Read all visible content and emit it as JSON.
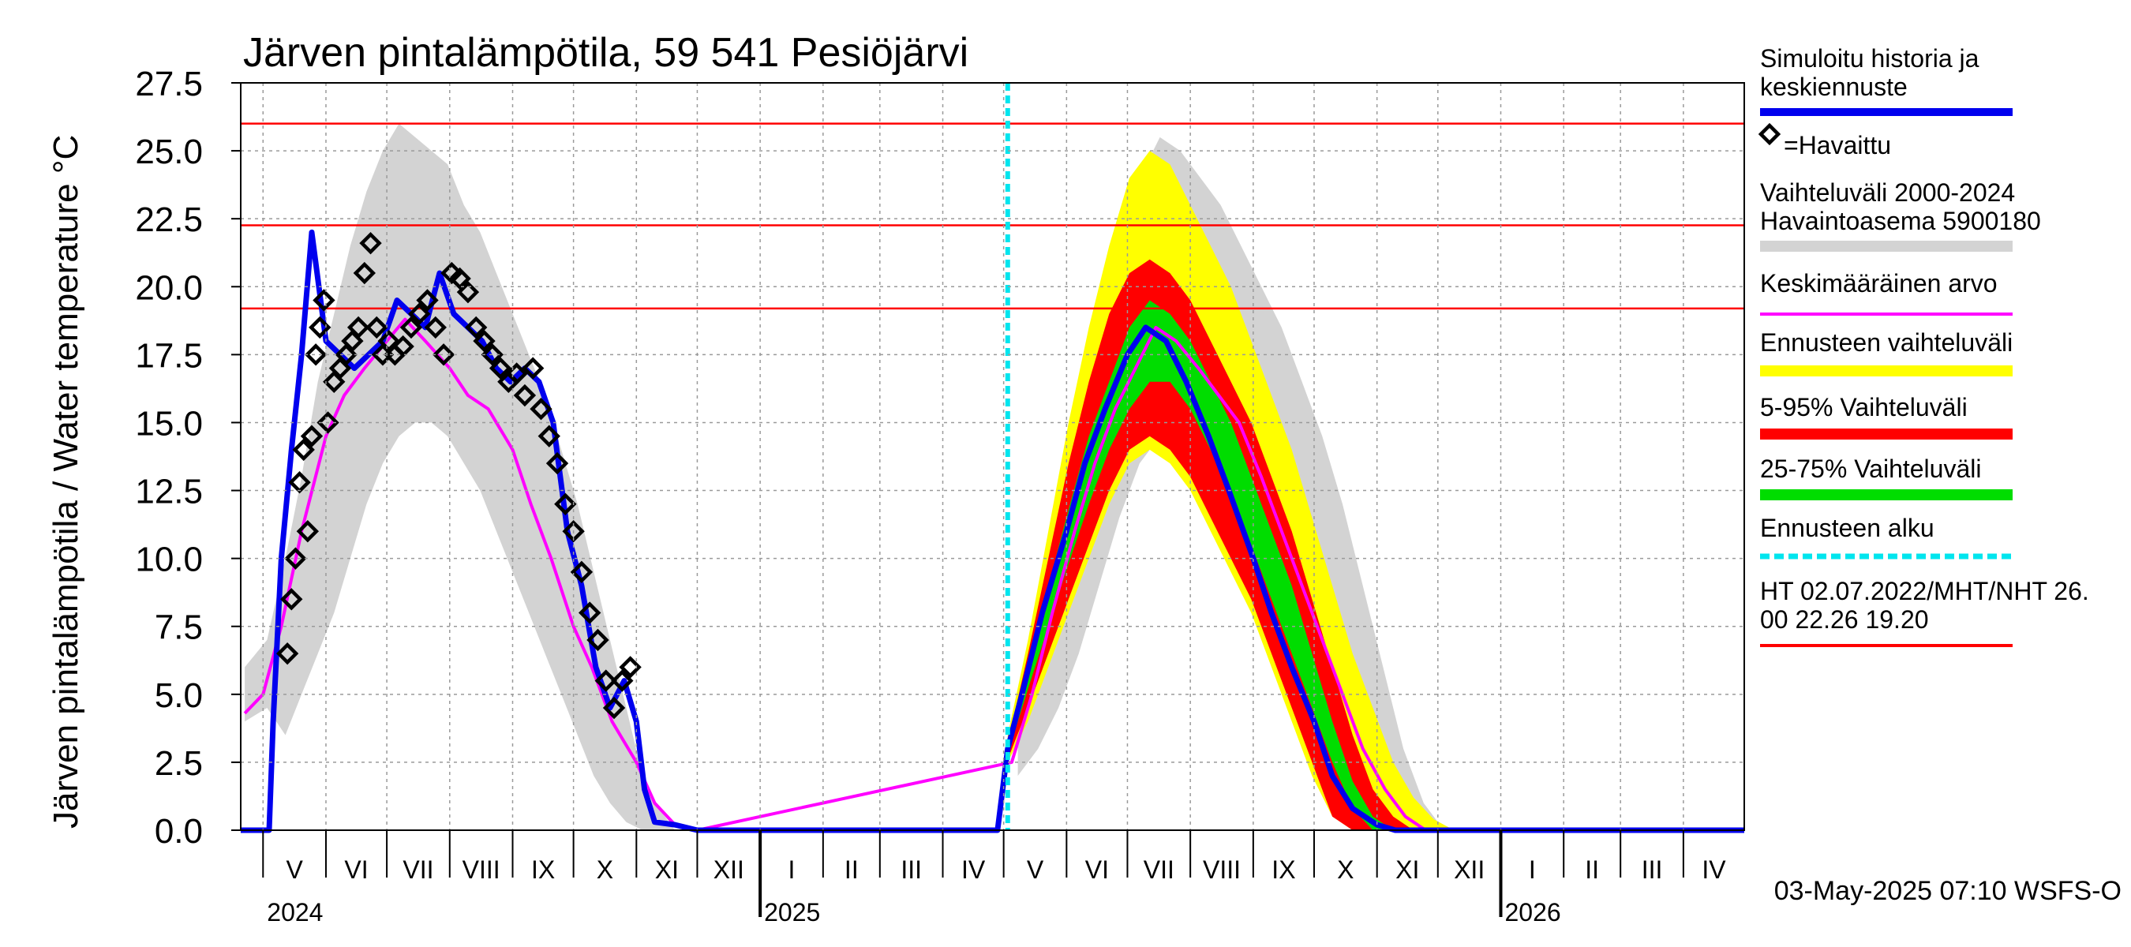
{
  "chart_data": {
    "type": "line",
    "title": "Järven pintalämpötila, 59 541 Pesiöjärvi",
    "ylabel": "Järven pintalämpötila / Water temperature °C",
    "ylim": [
      0,
      27.5
    ],
    "yticks": [
      "0.0",
      "2.5",
      "5.0",
      "7.5",
      "10.0",
      "12.5",
      "15.0",
      "17.5",
      "20.0",
      "22.5",
      "25.0",
      "27.5"
    ],
    "x_range": [
      "2024-04-20",
      "2026-05-01"
    ],
    "months": [
      {
        "label": "V",
        "start": "2024-05-01"
      },
      {
        "label": "VI",
        "start": "2024-06-01"
      },
      {
        "label": "VII",
        "start": "2024-07-01"
      },
      {
        "label": "VIII",
        "start": "2024-08-01"
      },
      {
        "label": "IX",
        "start": "2024-09-01"
      },
      {
        "label": "X",
        "start": "2024-10-01"
      },
      {
        "label": "XI",
        "start": "2024-11-01"
      },
      {
        "label": "XII",
        "start": "2024-12-01"
      },
      {
        "label": "I",
        "start": "2025-01-01"
      },
      {
        "label": "II",
        "start": "2025-02-01"
      },
      {
        "label": "III",
        "start": "2025-03-01"
      },
      {
        "label": "IV",
        "start": "2025-04-01"
      },
      {
        "label": "V",
        "start": "2025-05-01"
      },
      {
        "label": "VI",
        "start": "2025-06-01"
      },
      {
        "label": "VII",
        "start": "2025-07-01"
      },
      {
        "label": "VIII",
        "start": "2025-08-01"
      },
      {
        "label": "IX",
        "start": "2025-09-01"
      },
      {
        "label": "X",
        "start": "2025-10-01"
      },
      {
        "label": "XI",
        "start": "2025-11-01"
      },
      {
        "label": "XII",
        "start": "2025-12-01"
      },
      {
        "label": "I",
        "start": "2026-01-01"
      },
      {
        "label": "II",
        "start": "2026-02-01"
      },
      {
        "label": "III",
        "start": "2026-03-01"
      },
      {
        "label": "IV",
        "start": "2026-04-01"
      }
    ],
    "years": [
      {
        "label": "2024",
        "start": "2024-05-01"
      },
      {
        "label": "2025",
        "start": "2025-01-01"
      },
      {
        "label": "2026",
        "start": "2026-01-01"
      }
    ],
    "forecast_start": "2025-05-03",
    "reference_lines": [
      26.0,
      22.26,
      19.2
    ],
    "bands": {
      "history_range": {
        "x": [
          "2024-04-22",
          "2024-05-03",
          "2024-05-12",
          "2024-05-20",
          "2024-05-28",
          "2024-06-05",
          "2024-06-13",
          "2024-06-21",
          "2024-06-29",
          "2024-07-07",
          "2024-07-15",
          "2024-07-23",
          "2024-07-31",
          "2024-08-08",
          "2024-08-16",
          "2024-08-24",
          "2024-09-01",
          "2024-09-09",
          "2024-09-17",
          "2024-09-25",
          "2024-10-03",
          "2024-10-11",
          "2024-10-19",
          "2024-10-27",
          "2024-11-04",
          "2024-11-12",
          "2024-11-20"
        ],
        "low": [
          4.0,
          4.5,
          3.5,
          5.0,
          6.5,
          8.0,
          10.0,
          12.0,
          13.5,
          14.5,
          15.0,
          15.0,
          14.5,
          13.5,
          12.5,
          11.0,
          9.5,
          8.0,
          6.5,
          5.0,
          3.5,
          2.0,
          1.0,
          0.3,
          0.0,
          0.0,
          0.0
        ],
        "high": [
          6.0,
          7.0,
          10.0,
          13.0,
          16.5,
          19.0,
          21.5,
          23.5,
          25.0,
          26.0,
          25.5,
          25.0,
          24.5,
          23.0,
          22.0,
          20.5,
          19.0,
          17.5,
          16.0,
          14.0,
          12.0,
          9.5,
          7.0,
          4.5,
          2.0,
          0.8,
          0.0
        ]
      },
      "history_range_2025": {
        "x": [
          "2025-05-08",
          "2025-05-18",
          "2025-05-28",
          "2025-06-07",
          "2025-06-17",
          "2025-06-27",
          "2025-07-07",
          "2025-07-17",
          "2025-07-27",
          "2025-08-06",
          "2025-08-16",
          "2025-08-26",
          "2025-09-05",
          "2025-09-15",
          "2025-09-25",
          "2025-10-05",
          "2025-10-15",
          "2025-10-25",
          "2025-11-04",
          "2025-11-14",
          "2025-11-24",
          "2025-12-04"
        ],
        "low": [
          2.0,
          3.0,
          4.5,
          6.5,
          9.0,
          11.5,
          13.5,
          14.5,
          14.5,
          14.0,
          13.0,
          12.0,
          10.5,
          9.0,
          7.5,
          6.0,
          4.0,
          2.5,
          1.0,
          0.3,
          0.0,
          0.0
        ],
        "high": [
          4.5,
          7.0,
          10.5,
          14.0,
          17.5,
          21.0,
          24.0,
          25.5,
          25.0,
          24.0,
          23.0,
          21.5,
          20.0,
          18.5,
          16.5,
          14.5,
          12.0,
          9.0,
          6.0,
          3.0,
          1.0,
          0.0
        ]
      },
      "forecast_range": {
        "x": [
          "2025-05-03",
          "2025-05-13",
          "2025-05-23",
          "2025-06-02",
          "2025-06-12",
          "2025-06-22",
          "2025-07-02",
          "2025-07-12",
          "2025-07-22",
          "2025-08-01",
          "2025-08-11",
          "2025-08-21",
          "2025-08-31",
          "2025-09-10",
          "2025-09-20",
          "2025-09-30",
          "2025-10-10",
          "2025-10-20",
          "2025-10-30",
          "2025-11-09",
          "2025-11-19",
          "2025-11-29",
          "2025-12-09"
        ],
        "low": [
          2.5,
          4.0,
          6.0,
          8.0,
          10.0,
          12.0,
          13.5,
          14.0,
          13.5,
          12.5,
          11.0,
          9.5,
          8.0,
          6.0,
          4.0,
          2.0,
          0.5,
          0.0,
          0.0,
          0.0,
          0.0,
          0.0,
          0.0
        ],
        "high": [
          3.5,
          7.0,
          11.0,
          15.0,
          18.5,
          21.5,
          24.0,
          25.0,
          24.5,
          23.0,
          21.5,
          20.0,
          18.0,
          16.0,
          14.0,
          11.5,
          9.0,
          6.5,
          4.5,
          2.5,
          1.2,
          0.4,
          0.0
        ]
      },
      "p5_95": {
        "x": [
          "2025-05-03",
          "2025-05-13",
          "2025-05-23",
          "2025-06-02",
          "2025-06-12",
          "2025-06-22",
          "2025-07-02",
          "2025-07-12",
          "2025-07-22",
          "2025-08-01",
          "2025-08-11",
          "2025-08-21",
          "2025-08-31",
          "2025-09-10",
          "2025-09-20",
          "2025-09-30",
          "2025-10-10",
          "2025-10-20",
          "2025-10-30",
          "2025-11-09",
          "2025-11-19"
        ],
        "low": [
          2.6,
          4.5,
          6.5,
          8.5,
          10.5,
          12.5,
          14.0,
          14.5,
          14.0,
          13.0,
          11.5,
          10.0,
          8.5,
          6.5,
          4.5,
          2.5,
          0.5,
          0.0,
          0.0,
          0.0,
          0.0
        ],
        "high": [
          3.2,
          6.5,
          10.0,
          13.5,
          16.5,
          19.0,
          20.5,
          21.0,
          20.5,
          19.5,
          18.0,
          16.5,
          15.0,
          13.0,
          11.0,
          8.5,
          6.0,
          3.5,
          1.5,
          0.5,
          0.0
        ]
      },
      "p25_75": {
        "x": [
          "2025-05-03",
          "2025-05-13",
          "2025-05-23",
          "2025-06-02",
          "2025-06-12",
          "2025-06-22",
          "2025-07-02",
          "2025-07-12",
          "2025-07-22",
          "2025-08-01",
          "2025-08-11",
          "2025-08-21",
          "2025-08-31",
          "2025-09-10",
          "2025-09-20",
          "2025-09-30",
          "2025-10-10",
          "2025-10-20",
          "2025-10-30",
          "2025-11-09"
        ],
        "low": [
          2.8,
          5.2,
          7.5,
          9.8,
          12.0,
          14.0,
          15.5,
          16.5,
          16.5,
          15.5,
          14.0,
          12.5,
          10.5,
          8.5,
          6.5,
          4.5,
          2.5,
          0.8,
          0.0,
          0.0
        ],
        "high": [
          3.0,
          6.0,
          9.0,
          11.8,
          14.5,
          16.5,
          18.5,
          19.5,
          19.0,
          18.0,
          16.5,
          15.0,
          13.0,
          11.0,
          9.0,
          6.5,
          4.0,
          1.8,
          0.5,
          0.0
        ]
      }
    },
    "series": [
      {
        "name": "Simuloitu historia ja keskiennuste",
        "color": "#0000ee",
        "x": [
          "2024-04-20",
          "2024-05-04",
          "2024-05-06",
          "2024-05-10",
          "2024-05-15",
          "2024-05-20",
          "2024-05-25",
          "2024-06-01",
          "2024-06-08",
          "2024-06-15",
          "2024-06-22",
          "2024-06-29",
          "2024-07-06",
          "2024-07-13",
          "2024-07-20",
          "2024-07-27",
          "2024-08-03",
          "2024-08-10",
          "2024-08-17",
          "2024-08-24",
          "2024-08-31",
          "2024-09-07",
          "2024-09-14",
          "2024-09-21",
          "2024-09-28",
          "2024-10-05",
          "2024-10-12",
          "2024-10-19",
          "2024-10-26",
          "2024-11-01",
          "2024-11-05",
          "2024-11-10",
          "2024-11-20",
          "2024-12-01",
          "2025-01-01",
          "2025-04-28",
          "2025-05-03",
          "2025-05-10",
          "2025-05-20",
          "2025-06-01",
          "2025-06-10",
          "2025-06-20",
          "2025-07-01",
          "2025-07-10",
          "2025-07-20",
          "2025-07-30",
          "2025-08-10",
          "2025-08-20",
          "2025-09-01",
          "2025-09-10",
          "2025-09-20",
          "2025-10-01",
          "2025-10-10",
          "2025-10-20",
          "2025-11-01",
          "2025-11-10",
          "2025-11-20",
          "2025-12-01",
          "2026-01-01",
          "2026-05-01"
        ],
        "y": [
          0,
          0,
          4.0,
          10.0,
          14.0,
          17.5,
          22.0,
          18.0,
          17.5,
          17.0,
          17.5,
          18.0,
          19.5,
          19.0,
          18.5,
          20.5,
          19.0,
          18.5,
          18.0,
          17.0,
          16.5,
          17.0,
          16.5,
          15.0,
          11.0,
          9.0,
          6.0,
          4.5,
          5.5,
          4.0,
          1.5,
          0.3,
          0.2,
          0,
          0,
          0,
          3.0,
          5.0,
          8.0,
          11.0,
          13.5,
          15.5,
          17.5,
          18.5,
          18.0,
          16.5,
          14.5,
          12.5,
          10.0,
          8.0,
          6.0,
          4.0,
          2.0,
          0.8,
          0.2,
          0,
          0,
          0,
          0,
          0
        ]
      },
      {
        "name": "Keskimääräinen arvo",
        "color": "#ff00ff",
        "x": [
          "2024-04-22",
          "2024-05-01",
          "2024-05-10",
          "2024-05-20",
          "2024-06-01",
          "2024-06-10",
          "2024-06-20",
          "2024-07-01",
          "2024-07-10",
          "2024-07-20",
          "2024-08-01",
          "2024-08-10",
          "2024-08-20",
          "2024-09-01",
          "2024-09-10",
          "2024-09-20",
          "2024-10-01",
          "2024-10-10",
          "2024-10-20",
          "2024-11-01",
          "2024-11-10",
          "2024-11-20",
          "2024-12-01",
          "2025-05-05",
          "2025-05-15",
          "2025-05-25",
          "2025-06-05",
          "2025-06-15",
          "2025-06-25",
          "2025-07-05",
          "2025-07-15",
          "2025-07-25",
          "2025-08-05",
          "2025-08-15",
          "2025-08-25",
          "2025-09-05",
          "2025-09-15",
          "2025-09-25",
          "2025-10-05",
          "2025-10-15",
          "2025-10-25",
          "2025-11-05",
          "2025-11-15",
          "2025-11-25"
        ],
        "y": [
          4.3,
          5.0,
          7.5,
          11.0,
          14.5,
          16.0,
          17.0,
          18.0,
          18.8,
          18.0,
          17.0,
          16.0,
          15.5,
          14.0,
          12.0,
          10.0,
          7.5,
          6.0,
          4.0,
          2.5,
          1.0,
          0.2,
          0.0,
          2.5,
          5.0,
          8.0,
          11.0,
          13.5,
          15.5,
          17.0,
          18.5,
          18.0,
          17.0,
          16.0,
          15.0,
          13.0,
          11.0,
          9.0,
          7.0,
          5.0,
          3.0,
          1.5,
          0.5,
          0.0
        ]
      }
    ],
    "observations": {
      "name": "Havaittu",
      "x": [
        "2024-05-13",
        "2024-05-15",
        "2024-05-17",
        "2024-05-19",
        "2024-05-21",
        "2024-05-23",
        "2024-05-25",
        "2024-05-27",
        "2024-05-29",
        "2024-05-31",
        "2024-06-02",
        "2024-06-05",
        "2024-06-08",
        "2024-06-11",
        "2024-06-14",
        "2024-06-17",
        "2024-06-20",
        "2024-06-23",
        "2024-06-26",
        "2024-06-29",
        "2024-07-02",
        "2024-07-05",
        "2024-07-09",
        "2024-07-13",
        "2024-07-17",
        "2024-07-21",
        "2024-07-25",
        "2024-07-29",
        "2024-08-02",
        "2024-08-06",
        "2024-08-10",
        "2024-08-14",
        "2024-08-18",
        "2024-08-22",
        "2024-08-26",
        "2024-08-30",
        "2024-09-03",
        "2024-09-07",
        "2024-09-11",
        "2024-09-15",
        "2024-09-19",
        "2024-09-23",
        "2024-09-27",
        "2024-10-01",
        "2024-10-05",
        "2024-10-09",
        "2024-10-13",
        "2024-10-17",
        "2024-10-21",
        "2024-10-25",
        "2024-10-29"
      ],
      "y": [
        6.5,
        8.5,
        10.0,
        12.8,
        14.0,
        11.0,
        14.5,
        17.5,
        18.5,
        19.5,
        15.0,
        16.5,
        17.0,
        17.5,
        18.0,
        18.5,
        20.5,
        21.6,
        18.5,
        17.5,
        18.0,
        17.5,
        17.8,
        18.5,
        19.0,
        19.5,
        18.5,
        17.5,
        20.5,
        20.3,
        19.8,
        18.5,
        18.0,
        17.5,
        17.0,
        16.5,
        16.8,
        16.0,
        17.0,
        15.5,
        14.5,
        13.5,
        12.0,
        11.0,
        9.5,
        8.0,
        7.0,
        5.5,
        4.5,
        5.5,
        6.0
      ]
    },
    "legend": {
      "items": [
        {
          "text": "Simuloitu historia ja\nkeskiennuste",
          "color": "#0000ee"
        },
        {
          "text": "=Havaittu",
          "color": "#000000"
        },
        {
          "text": "Vaihteluväli 2000-2024\n Havaintoasema 5900180",
          "color": "#d3d3d3"
        },
        {
          "text": "Keskimääräinen arvo",
          "color": "#ff00ff"
        },
        {
          "text": "Ennusteen vaihteluväli",
          "color": "#ffff00"
        },
        {
          "text": "5-95% Vaihteluväli",
          "color": "#ff0000"
        },
        {
          "text": "25-75% Vaihteluväli",
          "color": "#00dd00"
        },
        {
          "text": "Ennusteen alku",
          "color": "#00e5ee"
        },
        {
          "text": "HT 02.07.2022/MHT/NHT 26.\n00 22.26 19.20",
          "color": "#ff0000"
        }
      ]
    },
    "footer": "03-May-2025 07:10 WSFS-O",
    "grid": true
  }
}
